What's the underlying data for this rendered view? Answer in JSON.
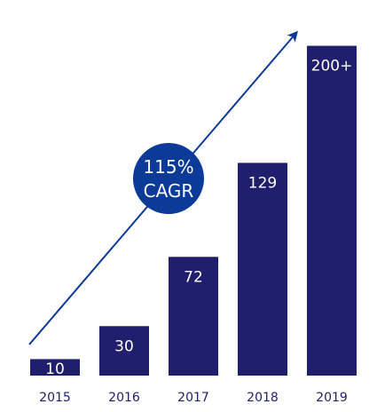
{
  "chart_data": {
    "type": "bar",
    "categories": [
      "2015",
      "2016",
      "2017",
      "2018",
      "2019"
    ],
    "values": [
      10,
      30,
      72,
      129,
      200
    ],
    "value_labels": [
      "10",
      "30",
      "72",
      "129",
      "200+"
    ],
    "badge": {
      "line1": "115%",
      "line2": "CAGR"
    },
    "ylim": [
      0,
      210
    ],
    "grid": false,
    "colors": {
      "bar": "#1f1f6e",
      "badge": "#0b3a99",
      "arrow": "#0b3a99",
      "label_on_bar": "#ffffff",
      "tick_label": "#1f1f6e"
    }
  }
}
